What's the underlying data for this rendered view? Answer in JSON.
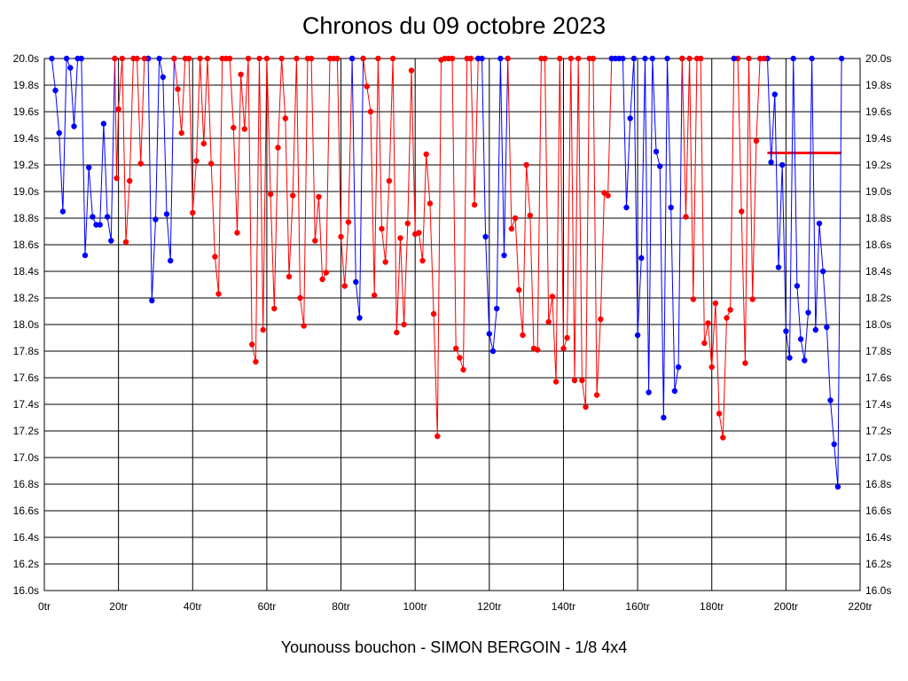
{
  "chart_data": {
    "type": "line",
    "title": "Chronos du 09 octobre 2023",
    "caption": "Younouss bouchon - SIMON BERGOIN - 1/8 4x4",
    "xlim": [
      0,
      220
    ],
    "ylim": [
      16.0,
      20.0
    ],
    "x_ticks": [
      "0tr",
      "20tr",
      "40tr",
      "60tr",
      "80tr",
      "100tr",
      "120tr",
      "140tr",
      "160tr",
      "180tr",
      "200tr",
      "220tr"
    ],
    "y_ticks": [
      "20.0s",
      "19.8s",
      "19.6s",
      "19.4s",
      "19.2s",
      "19.0s",
      "18.8s",
      "18.6s",
      "18.4s",
      "18.2s",
      "18.0s",
      "17.8s",
      "17.6s",
      "17.4s",
      "17.2s",
      "17.0s",
      "16.8s",
      "16.6s",
      "16.4s",
      "16.2s",
      "16.0s"
    ],
    "grid": true,
    "colors": {
      "blue": "#0000ff",
      "red": "#ff0000"
    },
    "reference_line": {
      "color": "red",
      "x_start": 195,
      "x_end": 215,
      "y": 19.29
    },
    "series": [
      {
        "color": "blue",
        "points": [
          [
            2,
            20.0
          ],
          [
            3,
            19.76
          ],
          [
            4,
            19.44
          ],
          [
            5,
            18.85
          ],
          [
            6,
            20.0
          ],
          [
            7,
            19.93
          ],
          [
            8,
            19.49
          ],
          [
            9,
            20.0
          ],
          [
            10,
            20.0
          ],
          [
            11,
            18.52
          ],
          [
            12,
            19.18
          ],
          [
            13,
            18.81
          ],
          [
            14,
            18.75
          ],
          [
            15,
            18.75
          ],
          [
            16,
            19.51
          ],
          [
            17,
            18.81
          ],
          [
            18,
            18.63
          ],
          [
            19,
            20.0
          ]
        ]
      },
      {
        "color": "red",
        "points": [
          [
            19,
            20.0
          ],
          [
            19.5,
            19.1
          ],
          [
            20,
            19.62
          ],
          [
            21,
            20.0
          ],
          [
            22,
            18.62
          ],
          [
            23,
            19.08
          ],
          [
            24,
            20.0
          ],
          [
            25,
            20.0
          ],
          [
            26,
            19.21
          ],
          [
            27,
            20.0
          ],
          [
            28,
            20.0
          ]
        ]
      },
      {
        "color": "blue",
        "points": [
          [
            28,
            20.0
          ],
          [
            29,
            18.18
          ],
          [
            30,
            18.79
          ],
          [
            31,
            20.0
          ],
          [
            32,
            19.86
          ],
          [
            33,
            18.83
          ],
          [
            34,
            18.48
          ],
          [
            35,
            20.0
          ]
        ]
      },
      {
        "color": "red",
        "points": [
          [
            35,
            20.0
          ],
          [
            36,
            19.77
          ],
          [
            37,
            19.44
          ],
          [
            38,
            20.0
          ],
          [
            39,
            20.0
          ],
          [
            40,
            18.84
          ],
          [
            41,
            19.23
          ],
          [
            42,
            20.0
          ],
          [
            43,
            19.36
          ],
          [
            44,
            20.0
          ],
          [
            45,
            19.21
          ],
          [
            46,
            18.51
          ],
          [
            47,
            18.23
          ],
          [
            48,
            20.0
          ],
          [
            49,
            20.0
          ],
          [
            50,
            20.0
          ],
          [
            51,
            19.48
          ],
          [
            52,
            18.69
          ],
          [
            53,
            19.88
          ],
          [
            54,
            19.47
          ],
          [
            55,
            20.0
          ],
          [
            56,
            17.85
          ],
          [
            57,
            17.72
          ],
          [
            58,
            20.0
          ],
          [
            59,
            17.96
          ],
          [
            60,
            20.0
          ],
          [
            61,
            18.98
          ],
          [
            62,
            18.12
          ],
          [
            63,
            19.33
          ],
          [
            64,
            20.0
          ],
          [
            65,
            19.55
          ],
          [
            66,
            18.36
          ],
          [
            67,
            18.97
          ],
          [
            68,
            20.0
          ],
          [
            69,
            18.2
          ],
          [
            70,
            17.99
          ],
          [
            71,
            20.0
          ],
          [
            72,
            20.0
          ],
          [
            73,
            18.63
          ],
          [
            74,
            18.96
          ],
          [
            75,
            18.34
          ],
          [
            76,
            18.39
          ],
          [
            77,
            20.0
          ],
          [
            78,
            20.0
          ],
          [
            79,
            20.0
          ],
          [
            80,
            18.66
          ],
          [
            81,
            18.29
          ],
          [
            82,
            18.77
          ],
          [
            83,
            20.0
          ]
        ]
      },
      {
        "color": "blue",
        "points": [
          [
            83,
            20.0
          ],
          [
            84,
            18.32
          ],
          [
            85,
            18.05
          ],
          [
            86,
            20.0
          ]
        ]
      },
      {
        "color": "red",
        "points": [
          [
            86,
            20.0
          ],
          [
            87,
            19.79
          ],
          [
            88,
            19.6
          ],
          [
            89,
            18.22
          ],
          [
            90,
            20.0
          ],
          [
            91,
            18.72
          ],
          [
            92,
            18.47
          ],
          [
            93,
            19.08
          ],
          [
            94,
            20.0
          ],
          [
            95,
            17.94
          ],
          [
            96,
            18.65
          ],
          [
            97,
            18.0
          ],
          [
            98,
            18.76
          ],
          [
            99,
            19.91
          ],
          [
            100,
            18.68
          ],
          [
            101,
            18.69
          ],
          [
            102,
            18.48
          ],
          [
            103,
            19.28
          ],
          [
            104,
            18.91
          ],
          [
            105,
            18.08
          ],
          [
            106,
            17.16
          ],
          [
            107,
            19.99
          ],
          [
            108,
            20.0
          ],
          [
            109,
            20.0
          ],
          [
            110,
            20.0
          ],
          [
            111,
            17.82
          ],
          [
            112,
            17.75
          ],
          [
            113,
            17.66
          ],
          [
            114,
            20.0
          ],
          [
            115,
            20.0
          ],
          [
            116,
            18.9
          ],
          [
            117,
            20.0
          ]
        ]
      },
      {
        "color": "blue",
        "points": [
          [
            117,
            20.0
          ],
          [
            118,
            20.0
          ],
          [
            119,
            18.66
          ],
          [
            120,
            17.93
          ],
          [
            121,
            17.8
          ],
          [
            122,
            18.12
          ],
          [
            123,
            20.0
          ],
          [
            124,
            18.52
          ],
          [
            125,
            20.0
          ]
        ]
      },
      {
        "color": "red",
        "points": [
          [
            125,
            20.0
          ],
          [
            126,
            18.72
          ],
          [
            127,
            18.8
          ],
          [
            128,
            18.26
          ],
          [
            129,
            17.92
          ],
          [
            130,
            19.2
          ],
          [
            131,
            18.82
          ],
          [
            132,
            17.82
          ],
          [
            133,
            17.81
          ],
          [
            134,
            20.0
          ],
          [
            135,
            20.0
          ],
          [
            136,
            18.02
          ],
          [
            137,
            18.21
          ],
          [
            138,
            17.57
          ],
          [
            139,
            20.0
          ],
          [
            140,
            17.82
          ],
          [
            141,
            17.9
          ],
          [
            142,
            20.0
          ],
          [
            143,
            17.58
          ],
          [
            144,
            20.0
          ],
          [
            145,
            17.58
          ],
          [
            146,
            17.38
          ],
          [
            147,
            20.0
          ],
          [
            148,
            20.0
          ],
          [
            149,
            17.47
          ],
          [
            150,
            18.04
          ],
          [
            151,
            18.99
          ],
          [
            152,
            18.97
          ],
          [
            153,
            20.0
          ]
        ]
      },
      {
        "color": "blue",
        "points": [
          [
            153,
            20.0
          ],
          [
            154,
            20.0
          ],
          [
            155,
            20.0
          ],
          [
            156,
            20.0
          ],
          [
            157,
            18.88
          ],
          [
            158,
            19.55
          ],
          [
            159,
            20.0
          ],
          [
            160,
            17.92
          ],
          [
            161,
            18.5
          ],
          [
            162,
            20.0
          ],
          [
            163,
            17.49
          ],
          [
            164,
            20.0
          ],
          [
            165,
            19.3
          ],
          [
            166,
            19.19
          ],
          [
            167,
            17.3
          ],
          [
            168,
            20.0
          ],
          [
            169,
            18.88
          ],
          [
            170,
            17.5
          ],
          [
            171,
            17.68
          ],
          [
            172,
            20.0
          ]
        ]
      },
      {
        "color": "red",
        "points": [
          [
            172,
            20.0
          ],
          [
            173,
            18.81
          ],
          [
            174,
            20.0
          ],
          [
            175,
            18.19
          ],
          [
            176,
            20.0
          ],
          [
            177,
            20.0
          ],
          [
            178,
            17.86
          ],
          [
            179,
            18.01
          ],
          [
            180,
            17.68
          ],
          [
            181,
            18.16
          ],
          [
            182,
            17.33
          ],
          [
            183,
            17.15
          ],
          [
            184,
            18.05
          ],
          [
            185,
            18.11
          ],
          [
            186,
            20.0
          ]
        ]
      },
      {
        "color": "blue",
        "points": [
          [
            186,
            20.0
          ],
          [
            187,
            20.0
          ]
        ]
      },
      {
        "color": "red",
        "points": [
          [
            187,
            20.0
          ],
          [
            188,
            18.85
          ],
          [
            189,
            17.71
          ],
          [
            190,
            20.0
          ],
          [
            191,
            18.19
          ],
          [
            192,
            19.38
          ],
          [
            193,
            20.0
          ],
          [
            194,
            20.0
          ],
          [
            195,
            20.0
          ]
        ]
      },
      {
        "color": "blue",
        "points": [
          [
            195,
            20.0
          ],
          [
            196,
            19.22
          ],
          [
            197,
            19.73
          ],
          [
            198,
            18.43
          ],
          [
            199,
            19.2
          ],
          [
            200,
            17.95
          ],
          [
            201,
            17.75
          ],
          [
            202,
            20.0
          ],
          [
            203,
            18.29
          ],
          [
            204,
            17.89
          ],
          [
            205,
            17.73
          ],
          [
            206,
            18.09
          ],
          [
            207,
            20.0
          ],
          [
            208,
            17.96
          ],
          [
            209,
            18.76
          ],
          [
            210,
            18.4
          ],
          [
            211,
            17.98
          ],
          [
            212,
            17.43
          ],
          [
            213,
            17.1
          ],
          [
            214,
            16.78
          ],
          [
            215,
            20.0
          ]
        ]
      }
    ]
  }
}
